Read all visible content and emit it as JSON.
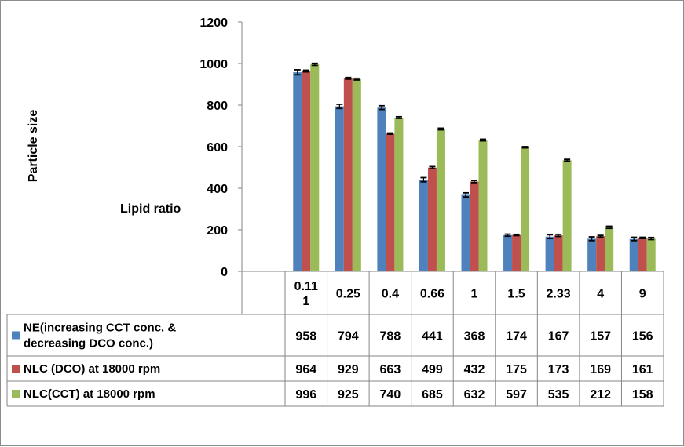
{
  "chart_data": {
    "type": "bar",
    "ylabel": "Particle size",
    "xlabel": "Lipid ratio",
    "ylim": [
      0,
      1200
    ],
    "yticks": [
      0,
      200,
      400,
      600,
      800,
      1000,
      1200
    ],
    "grid": false,
    "legend": "data-table-rows",
    "categories": [
      "0.11\n1",
      "0.25",
      "0.4",
      "0.66",
      "1",
      "1.5",
      "2.33",
      "4",
      "9"
    ],
    "series": [
      {
        "name": "NE(increasing CCT conc. & decreasing DCO conc.)",
        "name_lines": [
          "NE(increasing CCT conc. &",
          "decreasing DCO conc.)"
        ],
        "color": "#4f81bd",
        "values": [
          958,
          794,
          788,
          441,
          368,
          174,
          167,
          157,
          156
        ],
        "errors": [
          12,
          10,
          9,
          10,
          10,
          5,
          9,
          9,
          8
        ]
      },
      {
        "name": "NLC (DCO) at 18000 rpm",
        "name_lines": [
          "NLC (DCO) at 18000 rpm"
        ],
        "color": "#c0504d",
        "values": [
          964,
          929,
          663,
          499,
          432,
          175,
          173,
          169,
          161
        ],
        "errors": [
          4,
          4,
          3,
          5,
          5,
          3,
          5,
          4,
          3
        ]
      },
      {
        "name": "NLC(CCT) at 18000 rpm",
        "name_lines": [
          "NLC(CCT) at 18000 rpm"
        ],
        "color": "#9bbb59",
        "values": [
          996,
          925,
          740,
          685,
          632,
          597,
          535,
          212,
          158
        ],
        "errors": [
          5,
          4,
          4,
          4,
          4,
          3,
          4,
          5,
          5
        ]
      }
    ]
  }
}
